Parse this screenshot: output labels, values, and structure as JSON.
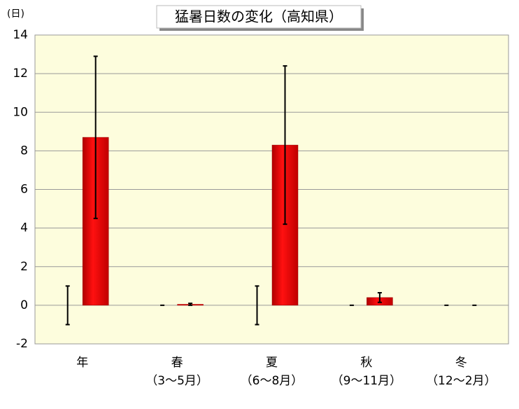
{
  "chart_data": {
    "type": "bar",
    "title": "猛暑日数の変化（高知県）",
    "y_unit": "(日)",
    "categories": [
      [
        "年"
      ],
      [
        "春",
        "（3～5月）"
      ],
      [
        "夏",
        "（6～8月）"
      ],
      [
        "秋",
        "（9～11月）"
      ],
      [
        "冬",
        "（12～2月）"
      ]
    ],
    "series": [
      {
        "color": "#ee0000",
        "values": [
          0,
          0,
          0,
          0,
          0
        ],
        "errors": [
          1,
          0,
          1,
          0,
          0
        ]
      },
      {
        "color": "#ee0000",
        "values": [
          8.7,
          0.05,
          8.3,
          0.4,
          0
        ],
        "errors": [
          4.2,
          0.05,
          4.1,
          0.25,
          0
        ]
      }
    ],
    "ylim": [
      -2,
      14
    ],
    "yticks": [
      -2,
      0,
      2,
      4,
      6,
      8,
      10,
      12,
      14
    ],
    "grid": true
  }
}
